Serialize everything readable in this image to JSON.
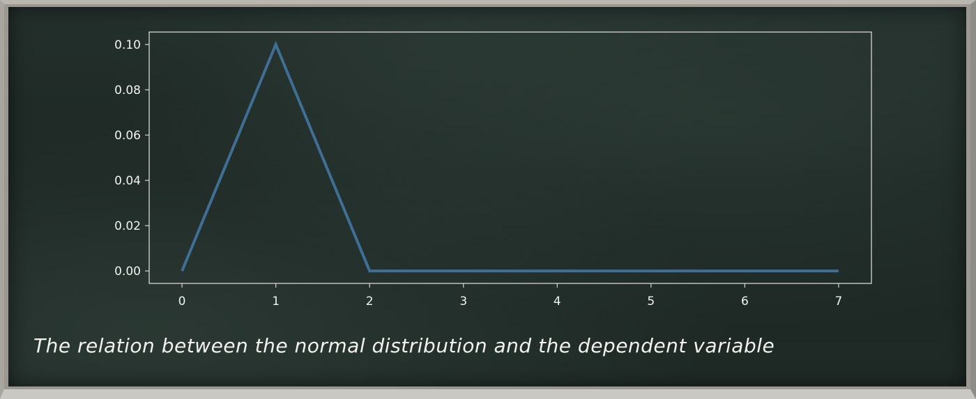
{
  "caption": "The relation between the normal distribution and the dependent variable",
  "colors": {
    "line": "#3f6f95",
    "axis": "#d8d8d4",
    "text": "#f2f2ee"
  },
  "chart_data": {
    "type": "line",
    "x": [
      0,
      1,
      2,
      3,
      4,
      5,
      6,
      7
    ],
    "series": [
      {
        "values": [
          0.0,
          0.1,
          0.0,
          0.0,
          0.0,
          0.0,
          0.0,
          0.0
        ]
      }
    ],
    "xticks": [
      "0",
      "1",
      "2",
      "3",
      "4",
      "5",
      "6",
      "7"
    ],
    "yticks": [
      "0.00",
      "0.02",
      "0.04",
      "0.06",
      "0.08",
      "0.10"
    ],
    "xlim": [
      -0.35,
      7.35
    ],
    "ylim": [
      -0.0055,
      0.1055
    ],
    "grid": false,
    "title": "",
    "xlabel": "",
    "ylabel": ""
  }
}
